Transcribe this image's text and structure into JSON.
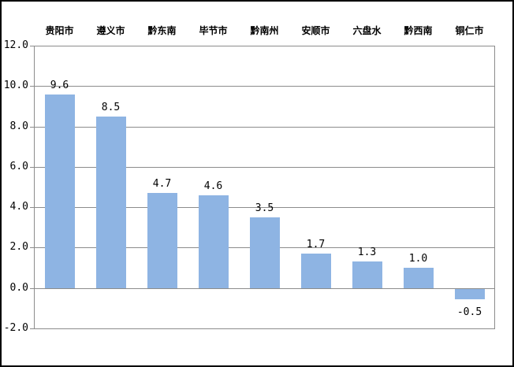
{
  "window": {
    "background_color": "#FFFFFF",
    "border_color": "#000000"
  },
  "chart_data": {
    "type": "bar",
    "categories": [
      "贵阳市",
      "遵义市",
      "黔东南",
      "毕节市",
      "黔南州",
      "安顺市",
      "六盘水",
      "黔西南",
      "铜仁市"
    ],
    "values": [
      9.6,
      8.5,
      4.7,
      4.6,
      3.5,
      1.7,
      1.3,
      1.0,
      -0.5
    ],
    "data_labels": [
      "9.6",
      "8.5",
      "4.7",
      "4.6",
      "3.5",
      "1.7",
      "1.3",
      "1.0",
      "-0.5"
    ],
    "y_tick_labels": [
      "12.0",
      "10.0",
      "8.0",
      "6.0",
      "4.0",
      "2.0",
      "0.0",
      "-2.0"
    ],
    "y_tick_values": [
      12,
      10,
      8,
      6,
      4,
      2,
      0,
      -2
    ],
    "ylim": [
      -2,
      12
    ],
    "grid": true,
    "legend": "none",
    "category_axis_position": "top",
    "data_label_position": "outside-end",
    "bar_color": "#8EB4E3",
    "gridline_color": "#8C8C8C",
    "axis_color": "#8C8C8C",
    "text_color": "#000000"
  }
}
